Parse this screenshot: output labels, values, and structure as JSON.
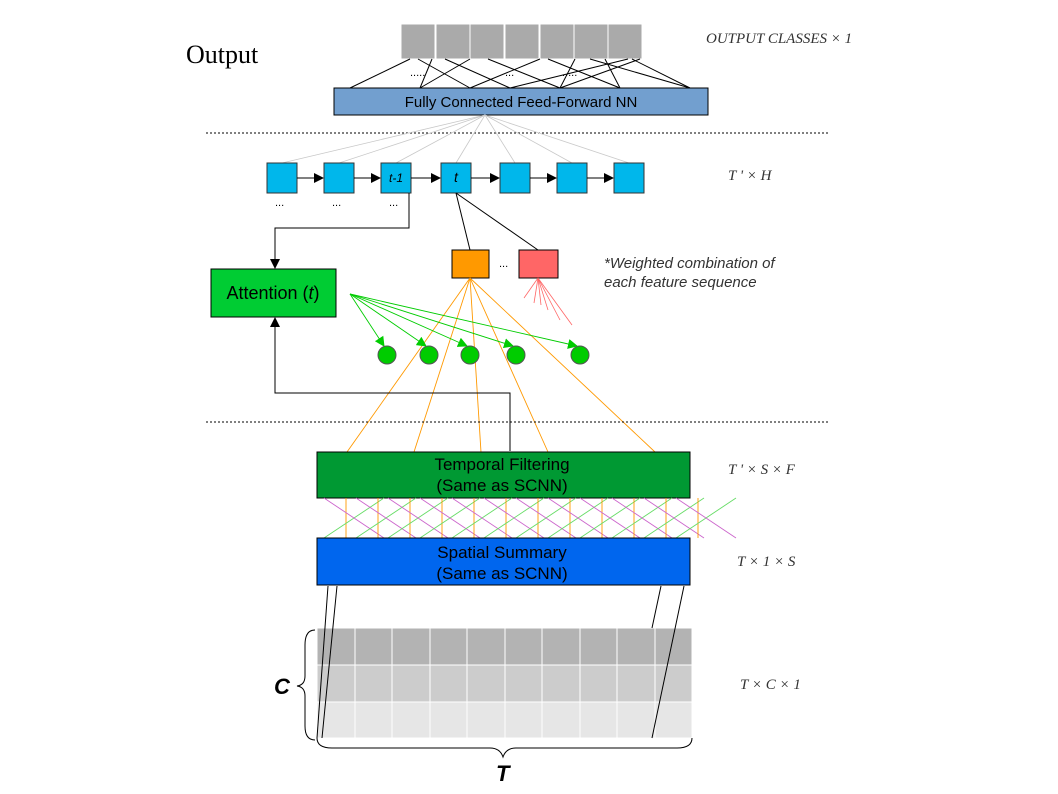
{
  "title": "Output",
  "fc_layer": {
    "label": "Fully Connected Feed-Forward NN"
  },
  "dims": {
    "output": "OUTPUT CLASSES × 1",
    "rnn": "T ' × H",
    "temporal": "T ' × S × F",
    "spatial": "T × 1 × S",
    "input": "T × C × 1"
  },
  "rnn": {
    "prev_label": "t-1",
    "curr_label": "t",
    "ellipsis": "..."
  },
  "attention": {
    "label": "Attention (",
    "var": "t",
    "close": ")"
  },
  "note": {
    "line1": "*Weighted combination of",
    "line2": "each feature sequence"
  },
  "feature_ellipsis": "...",
  "temporal": {
    "line1": "Temporal Filtering",
    "line2": "(Same as SCNN)"
  },
  "spatial": {
    "line1": "Spatial Summary",
    "line2": "(Same as SCNN)"
  },
  "axis": {
    "c": "C",
    "t": "T"
  },
  "colors": {
    "fc": "#729fcf",
    "rnn_cell": "#00b7eb",
    "attention": "#00cc33",
    "temporal": "#009933",
    "spatial": "#0066ee",
    "orange": "#ff9900",
    "red": "#ff6666",
    "green_node": "#00cc00",
    "grid_dark": "#b3b3b3",
    "grid_mid": "#cccccc",
    "grid_light": "#e6e6e6"
  }
}
